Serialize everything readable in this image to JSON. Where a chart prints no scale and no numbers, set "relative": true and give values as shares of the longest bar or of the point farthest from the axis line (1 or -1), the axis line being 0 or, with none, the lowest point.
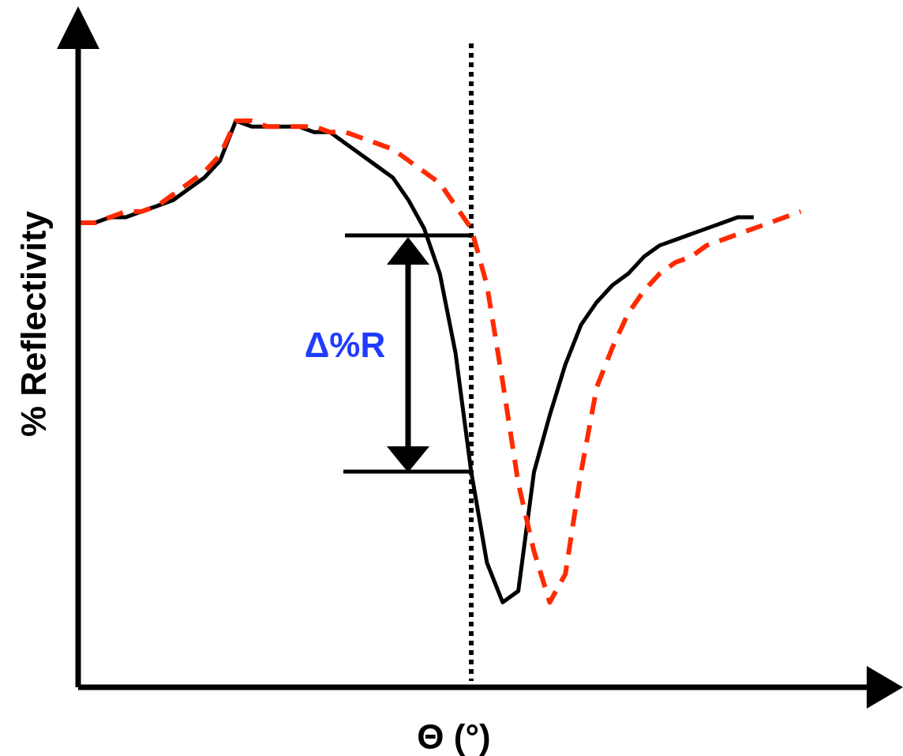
{
  "chart_data": {
    "type": "line",
    "relative": true,
    "xlabel": "Θ (°)",
    "ylabel": "% Reflectivity",
    "categories": [
      null,
      null,
      null,
      null,
      null,
      null,
      null,
      null,
      null,
      null,
      null,
      null,
      null,
      null,
      null,
      null,
      null,
      null,
      null,
      null,
      null,
      null,
      null,
      null,
      null,
      null,
      null,
      null,
      null,
      null,
      null,
      null,
      null,
      null,
      null,
      null,
      null,
      null,
      null,
      null,
      null,
      null,
      null,
      null,
      null,
      null,
      null
    ],
    "series": [
      {
        "color": "#000000",
        "line_style": "solid",
        "values": [
          0.82,
          0.82,
          0.83,
          0.83,
          0.84,
          0.85,
          0.86,
          0.88,
          0.9,
          0.93,
          1.0,
          0.99,
          0.99,
          0.99,
          0.99,
          0.98,
          0.98,
          0.96,
          0.94,
          0.92,
          0.9,
          0.86,
          0.81,
          0.73,
          0.59,
          0.38,
          0.22,
          0.15,
          0.17,
          0.38,
          0.48,
          0.57,
          0.64,
          0.68,
          0.71,
          0.73,
          0.76,
          0.78,
          0.79,
          0.8,
          0.81,
          0.82,
          0.83,
          0.83,
          null,
          null,
          null
        ]
      },
      {
        "color": "#ff2a00",
        "line_style": "dashed",
        "values": [
          0.82,
          0.82,
          0.83,
          0.84,
          0.84,
          0.85,
          0.87,
          0.89,
          0.91,
          0.94,
          1.0,
          1.0,
          0.99,
          0.99,
          0.99,
          0.99,
          0.98,
          0.98,
          0.97,
          0.96,
          0.95,
          0.93,
          0.91,
          0.89,
          0.85,
          0.81,
          0.71,
          0.54,
          0.36,
          0.24,
          0.15,
          0.2,
          0.38,
          0.53,
          0.6,
          0.66,
          0.7,
          0.73,
          0.75,
          0.76,
          0.78,
          0.79,
          0.8,
          0.81,
          0.82,
          0.83,
          0.84
        ]
      }
    ],
    "annotations": [
      "Δ%R"
    ]
  }
}
